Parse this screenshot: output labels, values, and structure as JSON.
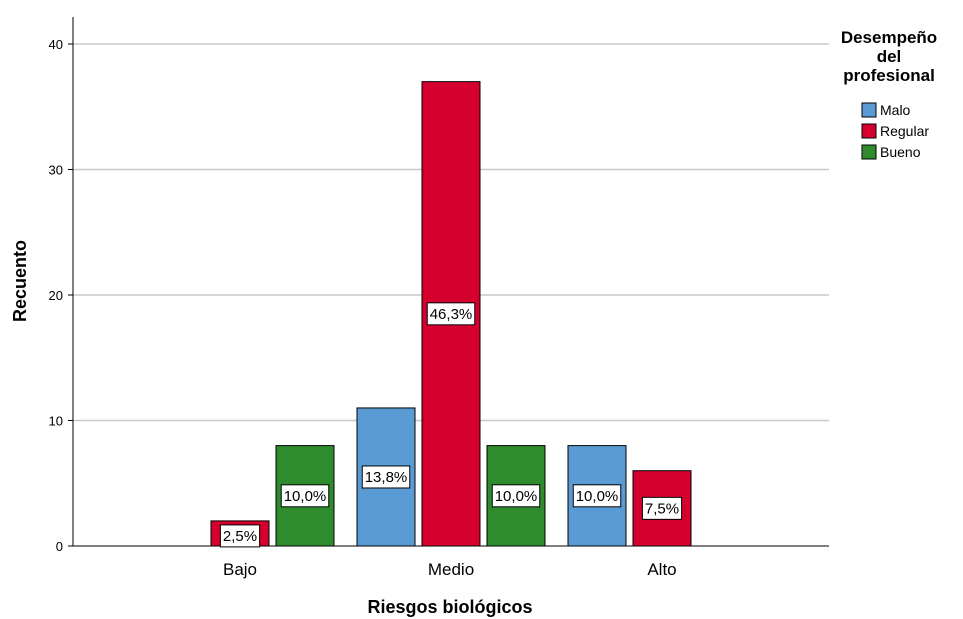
{
  "chart_data": {
    "type": "bar",
    "categories": [
      "Bajo",
      "Medio",
      "Alto"
    ],
    "series": [
      {
        "name": "Malo",
        "color": "#5b9bd5",
        "values": [
          0,
          11,
          8
        ],
        "labels": [
          "",
          "13,8%",
          "10,0%"
        ]
      },
      {
        "name": "Regular",
        "color": "#d6002f",
        "values": [
          2,
          37,
          6
        ],
        "labels": [
          "2,5%",
          "46,3%",
          "7,5%"
        ]
      },
      {
        "name": "Bueno",
        "color": "#2e8b2e",
        "values": [
          8,
          8,
          0
        ],
        "labels": [
          "10,0%",
          "10,0%",
          ""
        ]
      }
    ],
    "xlabel": "Riesgos biológicos",
    "ylabel": "Recuento",
    "ylim": [
      0,
      42
    ],
    "yticks": [
      0,
      10,
      20,
      30,
      40
    ],
    "grid": true,
    "legend": {
      "title_lines": [
        "Desempeño",
        "del",
        "profesional"
      ],
      "position": "top-right"
    }
  }
}
